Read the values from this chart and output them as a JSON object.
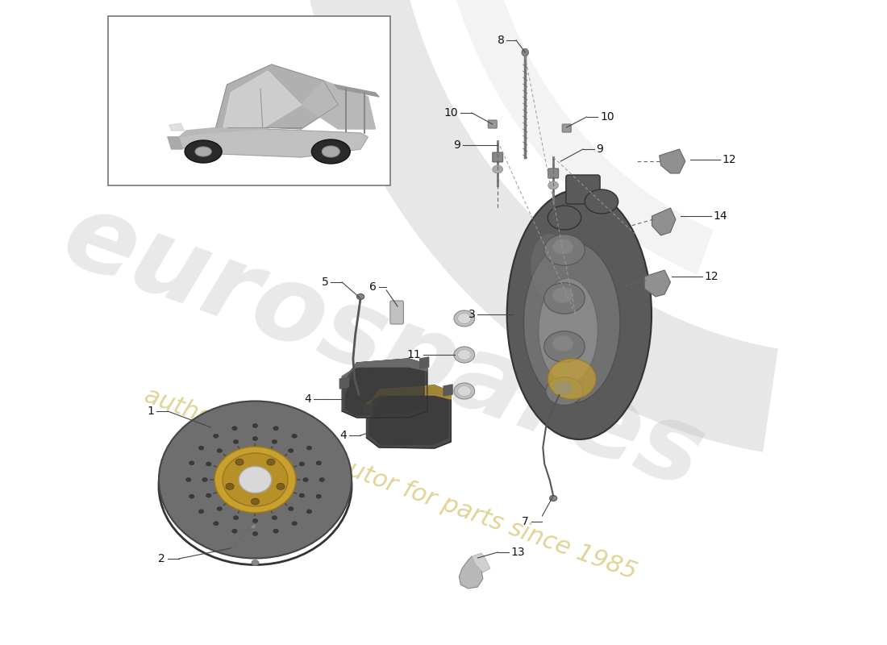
{
  "bg_color": "#ffffff",
  "watermark_color": "#c0c0c0",
  "watermark_alpha": 0.35,
  "swish_color": "#d8d8d8",
  "swish_alpha": 0.6,
  "line_color": "#444444",
  "dash_color": "#666666",
  "label_fontsize": 10,
  "label_color": "#111111",
  "disc_color": "#7a7a7a",
  "disc_edge": "#555555",
  "disc_hole_color": "#3a3a3a",
  "disc_hat_color": "#c8a030",
  "disc_hat_edge": "#9a7820",
  "disc_center_color": "#e0e0e0",
  "caliper_color": "#686868",
  "caliper_edge": "#444444",
  "pad_color": "#555555",
  "pad_edge": "#333333",
  "clip_color": "#aaaaaa",
  "bolt_color": "#888888"
}
